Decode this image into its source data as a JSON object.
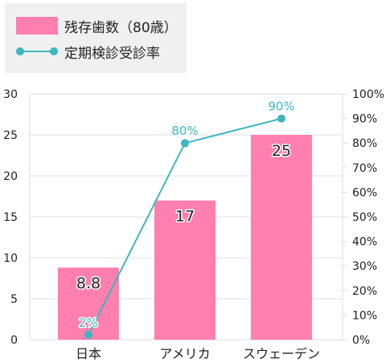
{
  "chart_data": {
    "type": "bar",
    "categories": [
      "日本",
      "アメリカ",
      "スウェーデン"
    ],
    "series": [
      {
        "name": "残存歯数（80歳）",
        "type": "bar",
        "axis": "left",
        "values": [
          8.8,
          17,
          25
        ],
        "data_labels": [
          "8.8",
          "17",
          "25"
        ],
        "color": "#ff7fae"
      },
      {
        "name": "定期検診受診率",
        "type": "line",
        "axis": "right",
        "values": [
          2,
          80,
          90
        ],
        "data_labels": [
          "2%",
          "80%",
          "90%"
        ],
        "color": "#3bb8bf"
      }
    ],
    "y_left": {
      "range": [
        0,
        30
      ],
      "ticks": [
        0,
        5,
        10,
        15,
        20,
        25,
        30
      ],
      "tick_labels": [
        "0",
        "5",
        "10",
        "15",
        "20",
        "25",
        "30"
      ]
    },
    "y_right": {
      "range": [
        0,
        100
      ],
      "ticks": [
        0,
        10,
        20,
        30,
        40,
        50,
        60,
        70,
        80,
        90,
        100
      ],
      "tick_labels": [
        "0%",
        "10%",
        "20%",
        "30%",
        "40%",
        "50%",
        "60%",
        "70%",
        "80%",
        "90%",
        "100%"
      ]
    },
    "legend": {
      "position": "top-left",
      "background": "#f0f0f0"
    },
    "grid": true,
    "grid_color": "#dddddd",
    "title": "",
    "xlabel": "",
    "ylabel": ""
  }
}
